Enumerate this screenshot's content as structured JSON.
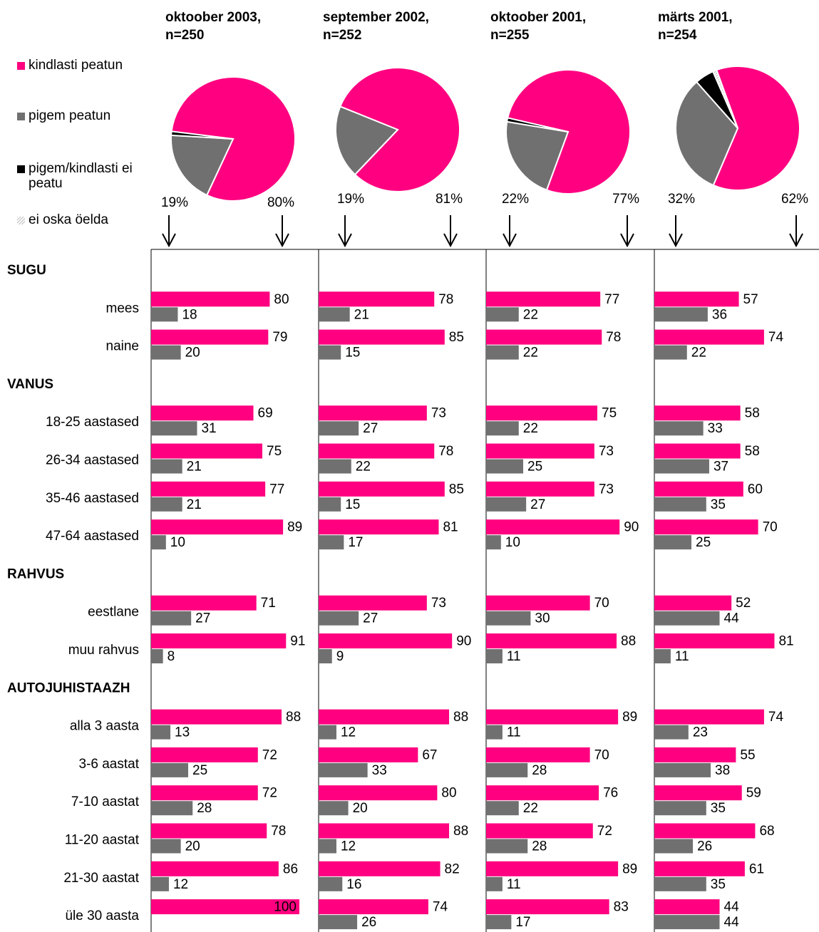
{
  "legend": [
    {
      "name": "kindlasti peatun",
      "color": "#ff0080"
    },
    {
      "name": "pigem peatun",
      "color": "#707070"
    },
    {
      "name": "pigem/kindlasti ei peatu",
      "color": "#000000"
    },
    {
      "name": "ei oska öelda",
      "color": "#dddddd"
    }
  ],
  "groups": [
    {
      "title": "SUGU",
      "categories": [
        "mees",
        "naine"
      ]
    },
    {
      "title": "VANUS",
      "categories": [
        "18-25 aastased",
        "26-34 aastased",
        "35-46 aastased",
        "47-64 aastased"
      ]
    },
    {
      "title": "RAHVUS",
      "categories": [
        "eestlane",
        "muu rahvus"
      ]
    },
    {
      "title": "AUTOJUHISTAAZH",
      "categories": [
        "alla 3 aasta",
        "3-6 aastat",
        "7-10 aastat",
        "11-20 aastat",
        "21-30 aastat",
        "üle 30 aasta"
      ]
    }
  ],
  "chart_data": [
    {
      "type": "pie",
      "title": "oktoober 2003,",
      "subtitle": "n=250",
      "values": [
        80,
        19,
        1,
        0
      ],
      "value_labels": [
        "80%",
        "19%",
        null,
        null
      ]
    },
    {
      "type": "bar",
      "xlim": [
        0,
        100
      ],
      "series": [
        {
          "values": [
            80,
            79,
            69,
            75,
            77,
            89,
            71,
            91,
            88,
            72,
            72,
            78,
            86,
            100
          ]
        },
        {
          "values": [
            18,
            20,
            31,
            21,
            21,
            10,
            27,
            8,
            13,
            25,
            28,
            20,
            12,
            null
          ]
        }
      ]
    },
    {
      "type": "pie",
      "title": "september 2002,",
      "subtitle": "n=252",
      "values": [
        81,
        19,
        0,
        0
      ],
      "value_labels": [
        "81%",
        "19%",
        null,
        null
      ]
    },
    {
      "type": "bar",
      "xlim": [
        0,
        100
      ],
      "series": [
        {
          "values": [
            78,
            85,
            73,
            78,
            85,
            81,
            73,
            90,
            88,
            67,
            80,
            88,
            82,
            74
          ]
        },
        {
          "values": [
            21,
            15,
            27,
            22,
            15,
            17,
            27,
            9,
            12,
            33,
            20,
            12,
            16,
            26
          ]
        }
      ]
    },
    {
      "type": "pie",
      "title": "oktoober 2001,",
      "subtitle": "n=255",
      "values": [
        77,
        22,
        1,
        0
      ],
      "value_labels": [
        "77%",
        "22%",
        null,
        null
      ]
    },
    {
      "type": "bar",
      "xlim": [
        0,
        100
      ],
      "series": [
        {
          "values": [
            77,
            78,
            75,
            73,
            73,
            90,
            70,
            88,
            89,
            70,
            76,
            72,
            89,
            83
          ]
        },
        {
          "values": [
            22,
            22,
            22,
            25,
            27,
            10,
            30,
            11,
            11,
            28,
            22,
            28,
            11,
            17
          ]
        }
      ]
    },
    {
      "type": "pie",
      "title": "märts 2001,",
      "subtitle": "n=254",
      "values": [
        62,
        32,
        5,
        1
      ],
      "value_labels": [
        "62%",
        "32%",
        null,
        null
      ]
    },
    {
      "type": "bar",
      "xlim": [
        0,
        100
      ],
      "series": [
        {
          "values": [
            57,
            74,
            58,
            58,
            60,
            70,
            52,
            81,
            74,
            55,
            59,
            68,
            61,
            44
          ]
        },
        {
          "values": [
            36,
            22,
            33,
            37,
            35,
            25,
            44,
            11,
            23,
            38,
            35,
            26,
            35,
            44
          ]
        }
      ]
    }
  ]
}
